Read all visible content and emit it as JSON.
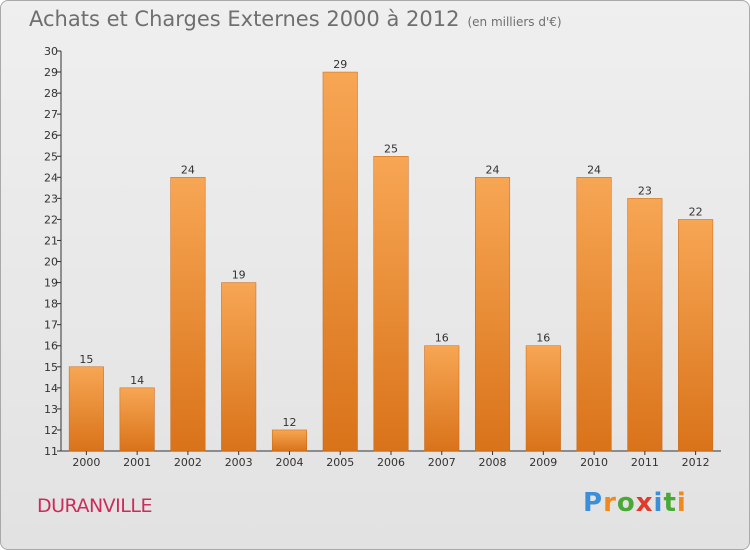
{
  "header": {
    "title": "Achats et Charges Externes 2000 à 2012",
    "subtitle": "(en milliers d'€)"
  },
  "footer": {
    "town": "DURANVILLE",
    "logo_letters": [
      "P",
      "r",
      "o",
      "x",
      "i",
      "t",
      "i"
    ],
    "logo_colors": [
      "#3a8fd8",
      "#f08a1c",
      "#4aa838",
      "#e23a2a",
      "#3a8fd8",
      "#4aa838",
      "#f08a1c"
    ]
  },
  "chart_data": {
    "type": "bar",
    "title": "Achats et Charges Externes 2000 à 2012",
    "subtitle": "(en milliers d'€)",
    "categories": [
      "2000",
      "2001",
      "2002",
      "2003",
      "2004",
      "2005",
      "2006",
      "2007",
      "2008",
      "2009",
      "2010",
      "2011",
      "2012"
    ],
    "values": [
      15,
      14,
      24,
      19,
      12,
      29,
      25,
      16,
      24,
      16,
      24,
      23,
      22
    ],
    "data_labels": [
      "15",
      "14",
      "24",
      "19",
      "12",
      "29",
      "25",
      "16",
      "24",
      "16",
      "24",
      "23",
      "22"
    ],
    "ylim": [
      11,
      30
    ],
    "yticks": [
      11,
      12,
      13,
      14,
      15,
      16,
      17,
      18,
      19,
      20,
      21,
      22,
      23,
      24,
      25,
      26,
      27,
      28,
      29,
      30
    ],
    "grid": false,
    "colors": {
      "bar_light": "#f7a654",
      "bar_dark": "#d9731a",
      "axis": "#333333"
    }
  }
}
